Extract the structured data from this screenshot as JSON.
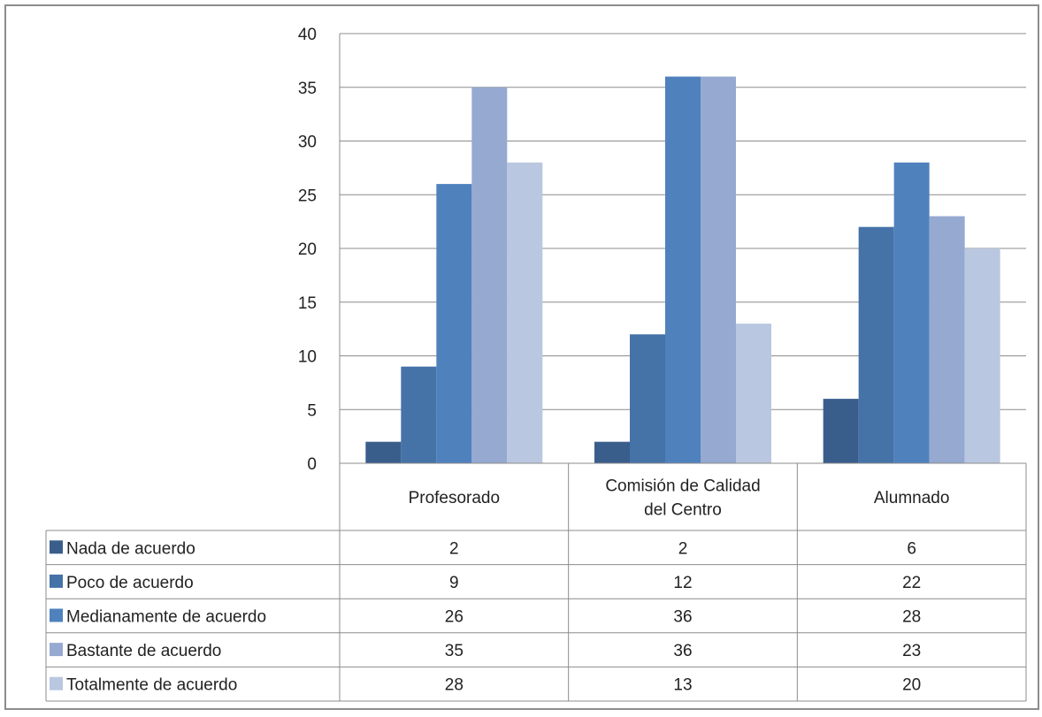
{
  "chart_data": {
    "type": "bar",
    "title": "",
    "xlabel": "",
    "ylabel": "",
    "ylim": [
      0,
      40
    ],
    "yticks": [
      "0",
      "5",
      "10",
      "15",
      "20",
      "25",
      "30",
      "35",
      "40"
    ],
    "grid": true,
    "legend": "data-table-below",
    "categories": [
      "Profesorado",
      "Comisión de Calidad del Centro",
      "Alumnado"
    ],
    "category_label_lines": [
      [
        "Profesorado"
      ],
      [
        "Comisión de Calidad",
        "del Centro"
      ],
      [
        "Alumnado"
      ]
    ],
    "series": [
      {
        "name": "Nada de acuerdo",
        "color": "#3a5e8c",
        "values": [
          2,
          2,
          6
        ]
      },
      {
        "name": "Poco de acuerdo",
        "color": "#4572a7",
        "values": [
          9,
          12,
          22
        ]
      },
      {
        "name": "Medianamente de acuerdo",
        "color": "#4f81bd",
        "values": [
          26,
          36,
          28
        ]
      },
      {
        "name": "Bastante de acuerdo",
        "color": "#95a9d1",
        "values": [
          35,
          36,
          23
        ]
      },
      {
        "name": "Totalmente de acuerdo",
        "color": "#bac7e0",
        "values": [
          28,
          13,
          20
        ]
      }
    ],
    "table_values": [
      [
        "2",
        "2",
        "6"
      ],
      [
        "9",
        "12",
        "22"
      ],
      [
        "26",
        "36",
        "28"
      ],
      [
        "35",
        "36",
        "23"
      ],
      [
        "28",
        "13",
        "20"
      ]
    ]
  }
}
